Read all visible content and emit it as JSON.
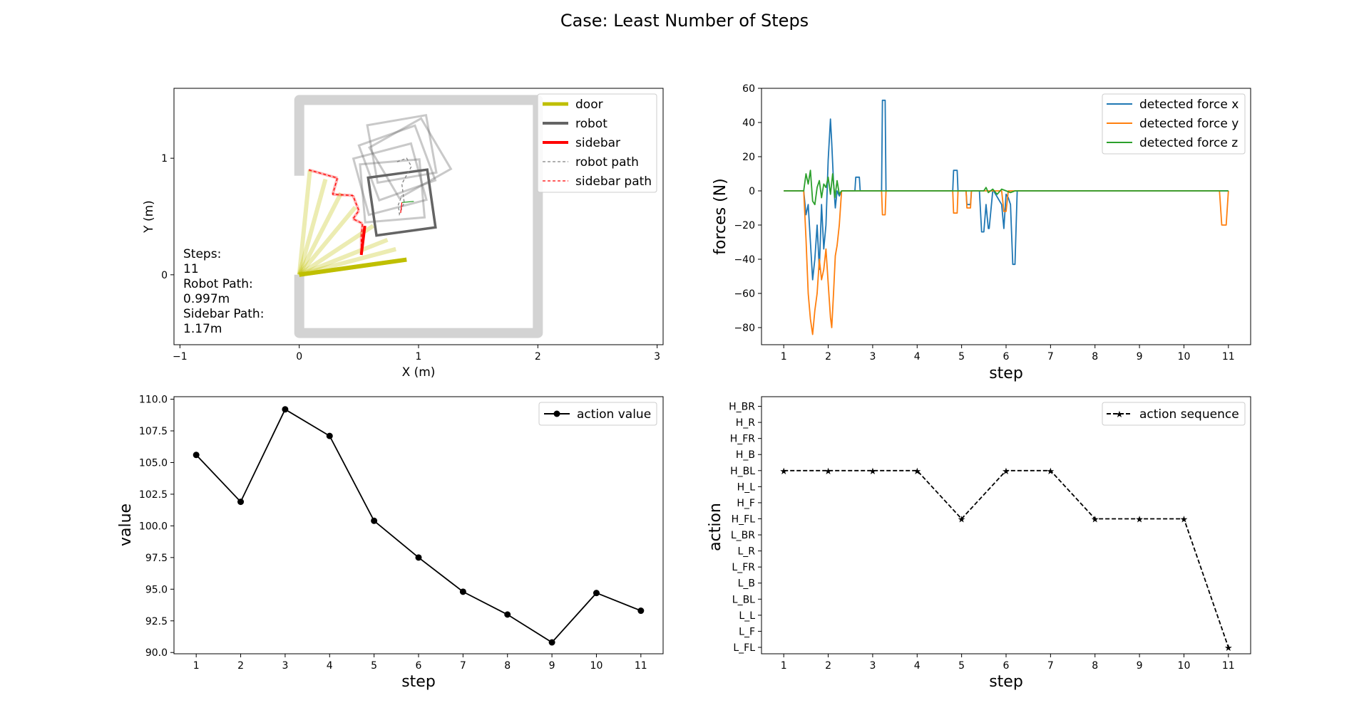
{
  "title": "Case: Least Number of Steps",
  "chart_data": [
    {
      "type": "line",
      "panel": "trajectory",
      "xlabel": "X (m)",
      "ylabel": "Y (m)",
      "xlim": [
        -1.05,
        3.05
      ],
      "ylim": [
        -0.6,
        1.6
      ],
      "xticks": [
        "−1",
        "0",
        "1",
        "2",
        "3"
      ],
      "xtick_values": [
        -1,
        0,
        1,
        2,
        3
      ],
      "yticks": [
        "0",
        "1"
      ],
      "ytick_values": [
        0,
        1
      ],
      "legend": [
        "door",
        "robot",
        "sidebar",
        "robot path",
        "sidebar path"
      ],
      "legend_position": "upper-right",
      "colors": {
        "door": "#bfbf00",
        "robot": "#646464",
        "sidebar": "#ff0000",
        "wall": "#d3d3d3",
        "robot_path": "#808080",
        "sidebar_path": "#ff0000"
      },
      "info_lines": [
        "Steps:",
        "11",
        "Robot Path:",
        "0.997m",
        "Sidebar Path:",
        "1.17m"
      ],
      "door_hinge": [
        0,
        0
      ],
      "door_positions": [
        [
          0.09,
          0.9
        ],
        [
          0.22,
          0.82
        ],
        [
          0.35,
          0.7
        ],
        [
          0.47,
          0.58
        ],
        [
          0.62,
          0.42
        ],
        [
          0.74,
          0.3
        ],
        [
          0.81,
          0.22
        ],
        [
          0.9,
          0.13
        ]
      ],
      "robot_path": [
        [
          0.82,
          0.97
        ],
        [
          0.9,
          1.0
        ],
        [
          0.94,
          0.93
        ],
        [
          0.86,
          0.78
        ],
        [
          0.88,
          0.62
        ],
        [
          0.84,
          0.52
        ],
        [
          0.83,
          0.6
        ],
        [
          0.86,
          0.68
        ]
      ],
      "sidebar_path": [
        [
          0.08,
          0.9
        ],
        [
          0.32,
          0.83
        ],
        [
          0.28,
          0.69
        ],
        [
          0.45,
          0.68
        ],
        [
          0.5,
          0.55
        ],
        [
          0.45,
          0.48
        ],
        [
          0.53,
          0.44
        ],
        [
          0.52,
          0.32
        ],
        [
          0.52,
          0.18
        ]
      ],
      "robot_squares": [
        {
          "center": [
            0.86,
            1.08
          ],
          "angle": 10
        },
        {
          "center": [
            0.93,
            1.0
          ],
          "angle": 30
        },
        {
          "center": [
            0.82,
            0.96
          ],
          "angle": 20
        },
        {
          "center": [
            0.76,
            0.82
          ],
          "angle": 15
        },
        {
          "center": [
            0.78,
            0.72
          ],
          "angle": 5
        },
        {
          "center": [
            0.86,
            0.62
          ],
          "angle": 8
        }
      ],
      "robot_final": {
        "center": [
          0.86,
          0.62
        ],
        "angle": 8
      },
      "sidebar_final": [
        [
          0.55,
          0.42
        ],
        [
          0.52,
          0.17
        ]
      ]
    },
    {
      "type": "line",
      "panel": "forces",
      "xlabel": "step",
      "ylabel": "forces (N)",
      "xlim": [
        0.5,
        11.5
      ],
      "ylim": [
        -90,
        60
      ],
      "xticks": [
        "1",
        "2",
        "3",
        "4",
        "5",
        "6",
        "7",
        "8",
        "9",
        "10",
        "11"
      ],
      "yticks": [
        "60",
        "40",
        "20",
        "0",
        "−20",
        "−40",
        "−60",
        "−80"
      ],
      "ytick_values": [
        60,
        40,
        20,
        0,
        -20,
        -40,
        -60,
        -80
      ],
      "legend_position": "upper-right",
      "series": [
        {
          "name": "detected force x",
          "color": "#1f77b4",
          "x": [
            1,
            1.45,
            1.5,
            1.55,
            1.6,
            1.65,
            1.7,
            1.75,
            1.8,
            1.85,
            1.9,
            1.95,
            2.0,
            2.05,
            2.08,
            2.12,
            2.16,
            2.2,
            2.25,
            2.3,
            2.6,
            2.62,
            2.7,
            2.72,
            3.2,
            3.22,
            3.28,
            3.3,
            4.8,
            4.82,
            4.9,
            4.92,
            5.1,
            5.12,
            5.2,
            5.22,
            5.4,
            5.45,
            5.5,
            5.55,
            5.6,
            5.62,
            5.7,
            5.72,
            5.9,
            5.95,
            6.0,
            6.05,
            6.1,
            6.15,
            6.2,
            6.25,
            6.3,
            7.0,
            11.0
          ],
          "y": [
            0,
            0,
            -14,
            -8,
            -30,
            -52,
            -40,
            -20,
            -46,
            -8,
            -34,
            -20,
            18,
            42,
            28,
            5,
            -10,
            0,
            -3,
            0,
            0,
            8,
            8,
            0,
            0,
            53,
            53,
            0,
            0,
            12,
            12,
            0,
            0,
            -8,
            -8,
            0,
            0,
            -24,
            -24,
            -8,
            -22,
            -22,
            0,
            0,
            -8,
            -22,
            -2,
            -4,
            -8,
            -43,
            -43,
            0,
            0,
            0,
            0
          ]
        },
        {
          "name": "detected force y",
          "color": "#ff7f0e",
          "x": [
            1,
            1.45,
            1.5,
            1.55,
            1.6,
            1.65,
            1.7,
            1.75,
            1.8,
            1.85,
            1.9,
            1.95,
            2.0,
            2.05,
            2.08,
            2.12,
            2.16,
            2.2,
            2.25,
            2.3,
            3.2,
            3.22,
            3.28,
            3.3,
            4.8,
            4.82,
            4.9,
            4.92,
            5.1,
            5.12,
            5.2,
            5.22,
            5.9,
            5.95,
            6.0,
            6.05,
            6.1,
            10.8,
            10.85,
            10.95,
            11.0
          ],
          "y": [
            0,
            0,
            -28,
            -60,
            -75,
            -84,
            -70,
            -60,
            -40,
            -52,
            -46,
            -34,
            -54,
            -74,
            -80,
            -60,
            -38,
            -32,
            -20,
            0,
            0,
            -14,
            -14,
            0,
            0,
            -13,
            -13,
            0,
            0,
            -10,
            -10,
            0,
            0,
            -12,
            -12,
            0,
            0,
            0,
            -20,
            -20,
            0
          ]
        },
        {
          "name": "detected force z",
          "color": "#2ca02c",
          "x": [
            1,
            1.45,
            1.5,
            1.55,
            1.6,
            1.65,
            1.7,
            1.75,
            1.8,
            1.85,
            1.9,
            1.95,
            2.0,
            2.05,
            2.1,
            2.15,
            2.2,
            2.25,
            2.3,
            5.5,
            5.55,
            5.6,
            5.7,
            5.8,
            5.9,
            6.0,
            6.1,
            6.2,
            11.0
          ],
          "y": [
            0,
            0,
            10,
            4,
            12,
            -6,
            -8,
            2,
            6,
            -4,
            4,
            2,
            8,
            -2,
            10,
            -4,
            6,
            -2,
            0,
            0,
            2,
            -1,
            1,
            -2,
            1,
            0,
            -1,
            0,
            0
          ]
        }
      ]
    },
    {
      "type": "line",
      "panel": "action-value",
      "xlabel": "step",
      "ylabel": "value",
      "x": [
        1,
        2,
        3,
        4,
        5,
        6,
        7,
        8,
        9,
        10,
        11
      ],
      "series": [
        {
          "name": "action value",
          "color": "#000000",
          "values": [
            105.6,
            101.9,
            109.2,
            107.1,
            100.4,
            97.5,
            94.8,
            93.0,
            90.8,
            94.7,
            93.3
          ]
        }
      ],
      "xlim": [
        0.5,
        11.5
      ],
      "ylim": [
        89.9,
        110.2
      ],
      "xticks": [
        "1",
        "2",
        "3",
        "4",
        "5",
        "6",
        "7",
        "8",
        "9",
        "10",
        "11"
      ],
      "yticks": [
        "110.0",
        "107.5",
        "105.0",
        "102.5",
        "100.0",
        "97.5",
        "95.0",
        "92.5",
        "90.0"
      ],
      "ytick_values": [
        110,
        107.5,
        105,
        102.5,
        100,
        97.5,
        95,
        92.5,
        90
      ],
      "legend_position": "upper-right"
    },
    {
      "type": "line",
      "panel": "action-sequence",
      "xlabel": "step",
      "ylabel": "action",
      "x": [
        1,
        2,
        3,
        4,
        5,
        6,
        7,
        8,
        9,
        10,
        11
      ],
      "categories": [
        "L_FL",
        "L_F",
        "L_L",
        "L_BL",
        "L_B",
        "L_FR",
        "L_R",
        "L_BR",
        "H_FL",
        "H_F",
        "H_L",
        "H_BL",
        "H_B",
        "H_FR",
        "H_R",
        "H_BR"
      ],
      "series": [
        {
          "name": "action sequence",
          "color": "#000000",
          "values": [
            "H_BL",
            "H_BL",
            "H_BL",
            "H_BL",
            "H_FL",
            "H_BL",
            "H_BL",
            "H_FL",
            "H_FL",
            "H_FL",
            "L_FL"
          ]
        }
      ],
      "xlim": [
        0.5,
        11.5
      ],
      "xticks": [
        "1",
        "2",
        "3",
        "4",
        "5",
        "6",
        "7",
        "8",
        "9",
        "10",
        "11"
      ],
      "legend_position": "upper-right"
    }
  ]
}
